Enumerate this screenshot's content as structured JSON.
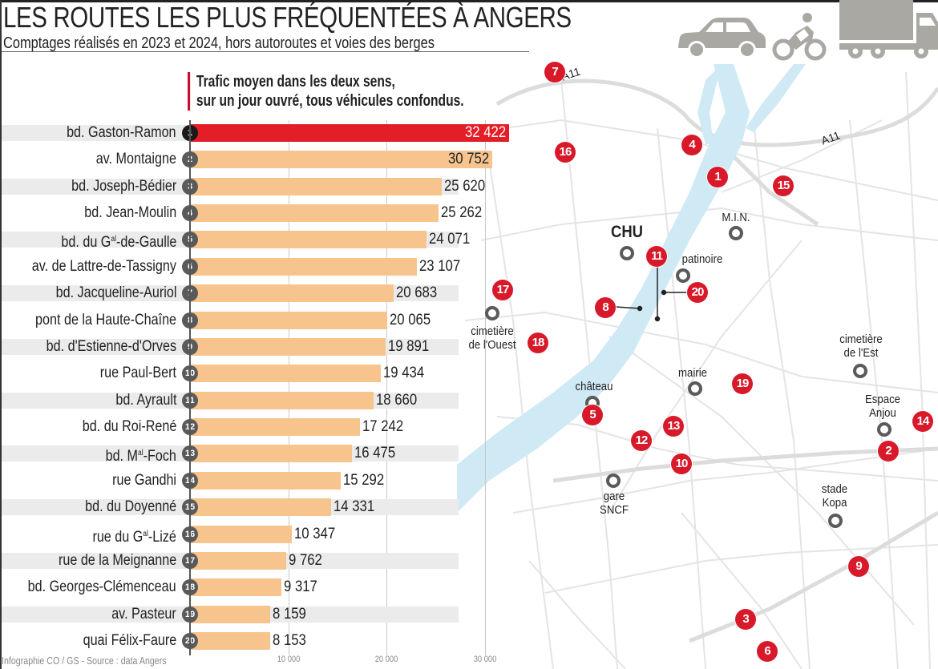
{
  "header": {
    "title": "LES ROUTES LES PLUS FRÉQUENTÉES À ANGERS",
    "subtitle": "Comptages réalisés en 2023 et 2024, hors autoroutes et voies des berges",
    "note_line1": "Trafic moyen dans les deux sens,",
    "note_line2": "sur un jour ouvré, tous véhicules confondus.",
    "icons": [
      "car-icon",
      "motorcycle-icon",
      "truck-icon"
    ]
  },
  "colors": {
    "top_bar": "#e41e26",
    "bar": "#f7c48e",
    "marker": "#d7192a",
    "river": "#cfe9f5",
    "roads": "#e3e3e3"
  },
  "chart_data": {
    "type": "bar",
    "orientation": "horizontal",
    "title": "LES ROUTES LES PLUS FRÉQUENTÉES À ANGERS",
    "subtitle": "Comptages réalisés en 2023 et 2024, hors autoroutes et voies des berges",
    "xlabel": "",
    "ylabel": "",
    "xlim": [
      0,
      32422
    ],
    "grid": true,
    "ticks": [
      "10 000",
      "20 000",
      "30 000"
    ],
    "tick_values": [
      10000,
      20000,
      30000
    ],
    "items": [
      {
        "rank": "1",
        "label": "bd. Gaston-Ramon",
        "sup": "",
        "suffix": "",
        "value": 32422,
        "display": "32 422"
      },
      {
        "rank": "2",
        "label": "av. Montaigne",
        "sup": "",
        "suffix": "",
        "value": 30752,
        "display": "30 752"
      },
      {
        "rank": "3",
        "label": "bd. Joseph-Bédier",
        "sup": "",
        "suffix": "",
        "value": 25620,
        "display": "25 620"
      },
      {
        "rank": "4",
        "label": "bd. Jean-Moulin",
        "sup": "",
        "suffix": "",
        "value": 25262,
        "display": "25 262"
      },
      {
        "rank": "5",
        "label": "bd. du G",
        "sup": "al",
        "suffix": "-de-Gaulle",
        "value": 24071,
        "display": "24 071"
      },
      {
        "rank": "6",
        "label": "av. de Lattre-de-Tassigny",
        "sup": "",
        "suffix": "",
        "value": 23107,
        "display": "23 107"
      },
      {
        "rank": "7",
        "label": "bd. Jacqueline-Auriol",
        "sup": "",
        "suffix": "",
        "value": 20683,
        "display": "20 683"
      },
      {
        "rank": "8",
        "label": "pont de la Haute-Chaîne",
        "sup": "",
        "suffix": "",
        "value": 20065,
        "display": "20 065"
      },
      {
        "rank": "9",
        "label": "bd. d'Estienne-d'Orves",
        "sup": "",
        "suffix": "",
        "value": 19891,
        "display": "19 891"
      },
      {
        "rank": "10",
        "label": "rue Paul-Bert",
        "sup": "",
        "suffix": "",
        "value": 19434,
        "display": "19 434"
      },
      {
        "rank": "11",
        "label": "bd. Ayrault",
        "sup": "",
        "suffix": "",
        "value": 18660,
        "display": "18 660"
      },
      {
        "rank": "12",
        "label": "bd. du Roi-René",
        "sup": "",
        "suffix": "",
        "value": 17242,
        "display": "17 242"
      },
      {
        "rank": "13",
        "label": "bd. M",
        "sup": "al",
        "suffix": "-Foch",
        "value": 16475,
        "display": "16 475"
      },
      {
        "rank": "14",
        "label": "rue Gandhi",
        "sup": "",
        "suffix": "",
        "value": 15292,
        "display": "15 292"
      },
      {
        "rank": "15",
        "label": "bd. du Doyenné",
        "sup": "",
        "suffix": "",
        "value": 14331,
        "display": "14 331"
      },
      {
        "rank": "16",
        "label": "rue du G",
        "sup": "al",
        "suffix": "-Lizé",
        "value": 10347,
        "display": "10 347"
      },
      {
        "rank": "17",
        "label": "rue de la Meignanne",
        "sup": "",
        "suffix": "",
        "value": 9762,
        "display": "9 762"
      },
      {
        "rank": "18",
        "label": "bd. Georges-Clémenceau",
        "sup": "",
        "suffix": "",
        "value": 9317,
        "display": "9 317"
      },
      {
        "rank": "19",
        "label": "av. Pasteur",
        "sup": "",
        "suffix": "",
        "value": 8159,
        "display": "8 159"
      },
      {
        "rank": "20",
        "label": "quai Félix-Faure",
        "sup": "",
        "suffix": "",
        "value": 8153,
        "display": "8 153"
      }
    ]
  },
  "map": {
    "road_labels": [
      "A11",
      "A11"
    ],
    "markers": [
      "1",
      "2",
      "3",
      "4",
      "5",
      "6",
      "7",
      "8",
      "9",
      "10",
      "11",
      "12",
      "13",
      "14",
      "15",
      "16",
      "17",
      "18",
      "19",
      "20"
    ],
    "places": {
      "chu": "CHU",
      "min": "M.I.N.",
      "patinoire": "patinoire",
      "cimetiere_ouest_1": "cimetière",
      "cimetiere_ouest_2": "de l'Ouest",
      "cimetiere_est_1": "cimetière",
      "cimetiere_est_2": "de l'Est",
      "mairie": "mairie",
      "chateau": "château",
      "espace_1": "Espace",
      "espace_2": "Anjou",
      "gare_1": "gare",
      "gare_2": "SNCF",
      "stade_1": "stade",
      "stade_2": "Kopa"
    }
  },
  "footer": {
    "credit": "Infographie CO / GS - Source : data Angers"
  }
}
